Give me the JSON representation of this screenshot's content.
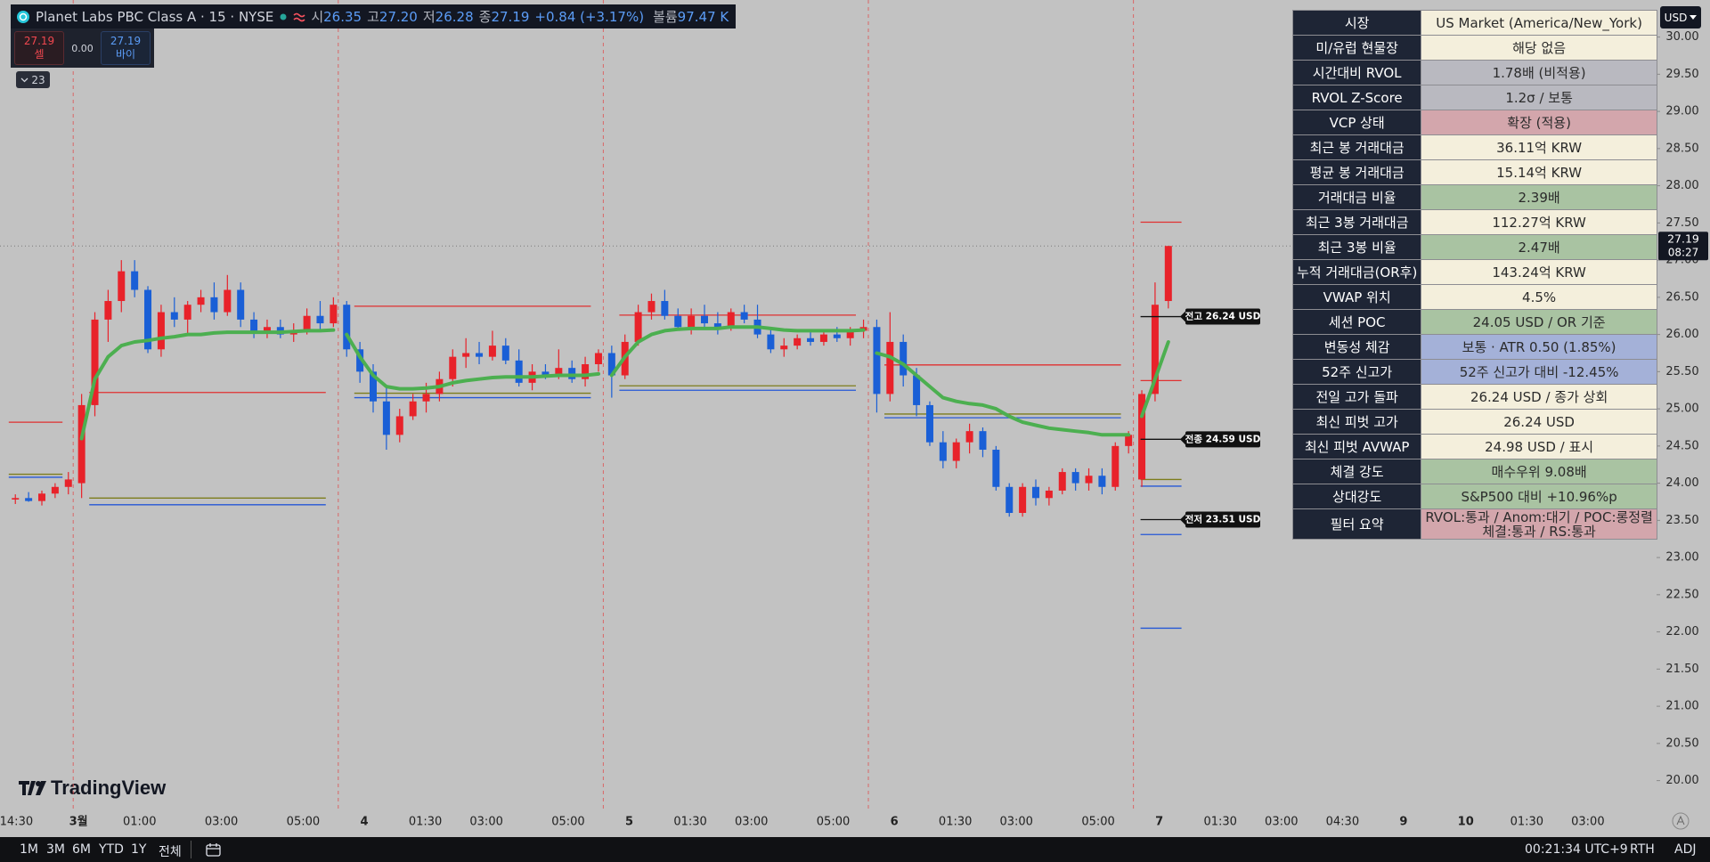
{
  "header": {
    "symbol": "Planet Labs PBC Class A · 15 · NYSE",
    "ohlc": [
      {
        "label": "시",
        "value": "26.35"
      },
      {
        "label": "고",
        "value": "27.20"
      },
      {
        "label": "저",
        "value": "26.28"
      },
      {
        "label": "종",
        "value": "27.19"
      }
    ],
    "change": "+0.84 (+3.17%)",
    "volume_label": "볼륨",
    "volume": "97.47 K"
  },
  "order": {
    "sell_price": "27.19",
    "sell_label": "셀",
    "spread": "0.00",
    "buy_price": "27.19",
    "buy_label": "바이"
  },
  "indicators_count": "23",
  "currency": "USD",
  "chart": {
    "type": "candlestick",
    "price": 27.19,
    "countdown": "08:27",
    "ylim": [
      20,
      30
    ],
    "yticks": [
      {
        "value": 30,
        "label": "30.00"
      },
      {
        "value": 29.5,
        "label": "29.50"
      },
      {
        "value": 29,
        "label": "29.00"
      },
      {
        "value": 28.5,
        "label": "28.50"
      },
      {
        "value": 28,
        "label": "28.00"
      },
      {
        "value": 27.5,
        "label": "27.50"
      },
      {
        "value": 27,
        "label": "27.00"
      },
      {
        "value": 26.5,
        "label": "26.50"
      },
      {
        "value": 26,
        "label": "26.00"
      },
      {
        "value": 25.5,
        "label": "25.50"
      },
      {
        "value": 25,
        "label": "25.00"
      },
      {
        "value": 24.5,
        "label": "24.50"
      },
      {
        "value": 24,
        "label": "24.00"
      },
      {
        "value": 23.5,
        "label": "23.50"
      },
      {
        "value": 23,
        "label": "23.00"
      },
      {
        "value": 22.5,
        "label": "22.50"
      },
      {
        "value": 22,
        "label": "22.00"
      },
      {
        "value": 21.5,
        "label": "21.50"
      },
      {
        "value": 21,
        "label": "21.00"
      },
      {
        "value": 20.5,
        "label": "20.50"
      },
      {
        "value": 20,
        "label": "20.00"
      }
    ],
    "x_labels": [
      "14:30",
      "3월",
      "01:00",
      "03:00",
      "05:00",
      "4",
      "01:30",
      "03:00",
      "05:00",
      "5",
      "01:30",
      "03:00",
      "05:00",
      "6",
      "01:30",
      "03:00",
      "05:00",
      "7",
      "01:30",
      "03:00",
      "04:30",
      "9",
      "10",
      "01:30",
      "03:00"
    ],
    "up_color": "#e8222a",
    "down_color": "#1a5fd6",
    "vwap_color": "#4caf50",
    "sessions": [
      {
        "candles": [
          {
            "o": 23.78,
            "h": 23.85,
            "l": 23.72,
            "c": 23.8
          },
          {
            "o": 23.8,
            "h": 23.88,
            "l": 23.75,
            "c": 23.76
          },
          {
            "o": 23.76,
            "h": 23.9,
            "l": 23.7,
            "c": 23.86
          },
          {
            "o": 23.86,
            "h": 24.0,
            "l": 23.8,
            "c": 23.95
          },
          {
            "o": 23.95,
            "h": 24.15,
            "l": 23.85,
            "c": 24.05
          }
        ],
        "vwap": [
          null,
          null,
          null,
          null,
          null
        ],
        "levels": [
          {
            "price": 24.82,
            "color": "#e03030"
          },
          {
            "price": 24.12,
            "color": "#7d7d1c"
          },
          {
            "price": 24.08,
            "color": "#2457d6"
          }
        ]
      },
      {
        "candles": [
          {
            "o": 24.0,
            "h": 25.2,
            "l": 23.8,
            "c": 25.05
          },
          {
            "o": 25.05,
            "h": 26.3,
            "l": 24.9,
            "c": 26.2
          },
          {
            "o": 26.2,
            "h": 26.6,
            "l": 25.9,
            "c": 26.45
          },
          {
            "o": 26.45,
            "h": 27.0,
            "l": 26.3,
            "c": 26.85
          },
          {
            "o": 26.85,
            "h": 27.0,
            "l": 26.5,
            "c": 26.6
          },
          {
            "o": 26.6,
            "h": 26.65,
            "l": 25.75,
            "c": 25.8
          },
          {
            "o": 25.8,
            "h": 26.4,
            "l": 25.7,
            "c": 26.3
          },
          {
            "o": 26.3,
            "h": 26.5,
            "l": 26.1,
            "c": 26.2
          },
          {
            "o": 26.2,
            "h": 26.45,
            "l": 26.0,
            "c": 26.4
          },
          {
            "o": 26.4,
            "h": 26.6,
            "l": 26.3,
            "c": 26.5
          },
          {
            "o": 26.5,
            "h": 26.7,
            "l": 26.2,
            "c": 26.3
          },
          {
            "o": 26.3,
            "h": 26.8,
            "l": 26.25,
            "c": 26.6
          },
          {
            "o": 26.6,
            "h": 26.7,
            "l": 26.1,
            "c": 26.2
          },
          {
            "o": 26.2,
            "h": 26.3,
            "l": 25.95,
            "c": 26.05
          },
          {
            "o": 26.05,
            "h": 26.2,
            "l": 25.95,
            "c": 26.1
          },
          {
            "o": 26.1,
            "h": 26.2,
            "l": 25.95,
            "c": 26.0
          },
          {
            "o": 26.0,
            "h": 26.15,
            "l": 25.9,
            "c": 26.05
          },
          {
            "o": 26.05,
            "h": 26.35,
            "l": 26.0,
            "c": 26.25
          },
          {
            "o": 26.25,
            "h": 26.45,
            "l": 26.05,
            "c": 26.15
          },
          {
            "o": 26.15,
            "h": 26.5,
            "l": 26.1,
            "c": 26.4
          }
        ],
        "vwap": [
          24.6,
          25.4,
          25.7,
          25.85,
          25.9,
          25.92,
          25.95,
          25.97,
          26.0,
          26.0,
          26.02,
          26.03,
          26.03,
          26.03,
          26.03,
          26.03,
          26.04,
          26.05,
          26.05,
          26.06
        ],
        "levels": [
          {
            "price": 25.22,
            "color": "#e03030"
          },
          {
            "price": 23.8,
            "color": "#7d7d1c"
          },
          {
            "price": 23.71,
            "color": "#2457d6"
          }
        ]
      },
      {
        "candles": [
          {
            "o": 26.4,
            "h": 26.45,
            "l": 25.7,
            "c": 25.8
          },
          {
            "o": 25.8,
            "h": 25.9,
            "l": 25.35,
            "c": 25.5
          },
          {
            "o": 25.5,
            "h": 25.6,
            "l": 24.95,
            "c": 25.1
          },
          {
            "o": 25.1,
            "h": 25.3,
            "l": 24.45,
            "c": 24.65
          },
          {
            "o": 24.65,
            "h": 25.0,
            "l": 24.55,
            "c": 24.9
          },
          {
            "o": 24.9,
            "h": 25.2,
            "l": 24.85,
            "c": 25.1
          },
          {
            "o": 25.1,
            "h": 25.35,
            "l": 24.95,
            "c": 25.2
          },
          {
            "o": 25.2,
            "h": 25.5,
            "l": 25.1,
            "c": 25.4
          },
          {
            "o": 25.4,
            "h": 25.8,
            "l": 25.3,
            "c": 25.7
          },
          {
            "o": 25.7,
            "h": 25.95,
            "l": 25.55,
            "c": 25.75
          },
          {
            "o": 25.75,
            "h": 25.9,
            "l": 25.6,
            "c": 25.7
          },
          {
            "o": 25.7,
            "h": 26.05,
            "l": 25.65,
            "c": 25.85
          },
          {
            "o": 25.85,
            "h": 25.95,
            "l": 25.6,
            "c": 25.65
          },
          {
            "o": 25.65,
            "h": 25.8,
            "l": 25.3,
            "c": 25.35
          },
          {
            "o": 25.35,
            "h": 25.6,
            "l": 25.25,
            "c": 25.5
          },
          {
            "o": 25.5,
            "h": 25.6,
            "l": 25.4,
            "c": 25.45
          },
          {
            "o": 25.45,
            "h": 25.8,
            "l": 25.4,
            "c": 25.55
          },
          {
            "o": 25.55,
            "h": 25.65,
            "l": 25.35,
            "c": 25.4
          },
          {
            "o": 25.4,
            "h": 25.7,
            "l": 25.3,
            "c": 25.6
          },
          {
            "o": 25.6,
            "h": 25.8,
            "l": 25.5,
            "c": 25.75
          }
        ],
        "vwap": [
          26.0,
          25.7,
          25.45,
          25.3,
          25.27,
          25.27,
          25.28,
          25.3,
          25.35,
          25.38,
          25.4,
          25.42,
          25.43,
          25.43,
          25.43,
          25.44,
          25.45,
          25.45,
          25.45,
          25.47
        ],
        "levels": [
          {
            "price": 26.38,
            "color": "#e03030"
          },
          {
            "price": 25.21,
            "color": "#7d7d1c"
          },
          {
            "price": 25.15,
            "color": "#2457d6"
          }
        ]
      },
      {
        "candles": [
          {
            "o": 25.75,
            "h": 25.85,
            "l": 25.15,
            "c": 25.45
          },
          {
            "o": 25.45,
            "h": 26.0,
            "l": 25.4,
            "c": 25.9
          },
          {
            "o": 25.9,
            "h": 26.4,
            "l": 25.85,
            "c": 26.3
          },
          {
            "o": 26.3,
            "h": 26.55,
            "l": 26.2,
            "c": 26.45
          },
          {
            "o": 26.45,
            "h": 26.6,
            "l": 26.2,
            "c": 26.25
          },
          {
            "o": 26.25,
            "h": 26.35,
            "l": 26.05,
            "c": 26.1
          },
          {
            "o": 26.1,
            "h": 26.35,
            "l": 26.0,
            "c": 26.25
          },
          {
            "o": 26.25,
            "h": 26.4,
            "l": 26.1,
            "c": 26.15
          },
          {
            "o": 26.15,
            "h": 26.3,
            "l": 26.0,
            "c": 26.1
          },
          {
            "o": 26.1,
            "h": 26.35,
            "l": 26.05,
            "c": 26.3
          },
          {
            "o": 26.3,
            "h": 26.4,
            "l": 26.15,
            "c": 26.2
          },
          {
            "o": 26.2,
            "h": 26.4,
            "l": 25.95,
            "c": 26.0
          },
          {
            "o": 26.0,
            "h": 26.1,
            "l": 25.75,
            "c": 25.8
          },
          {
            "o": 25.8,
            "h": 25.95,
            "l": 25.7,
            "c": 25.85
          },
          {
            "o": 25.85,
            "h": 26.0,
            "l": 25.8,
            "c": 25.95
          },
          {
            "o": 25.95,
            "h": 26.05,
            "l": 25.85,
            "c": 25.9
          },
          {
            "o": 25.9,
            "h": 26.05,
            "l": 25.85,
            "c": 26.0
          },
          {
            "o": 26.0,
            "h": 26.1,
            "l": 25.9,
            "c": 25.95
          },
          {
            "o": 25.95,
            "h": 26.1,
            "l": 25.85,
            "c": 26.05
          },
          {
            "o": 26.05,
            "h": 26.2,
            "l": 25.95,
            "c": 26.1
          }
        ],
        "vwap": [
          25.45,
          25.7,
          25.9,
          26.0,
          26.05,
          26.07,
          26.08,
          26.08,
          26.08,
          26.1,
          26.1,
          26.1,
          26.08,
          26.06,
          26.05,
          26.05,
          26.05,
          26.05,
          26.05,
          26.06
        ],
        "levels": [
          {
            "price": 26.26,
            "color": "#e03030"
          },
          {
            "price": 25.31,
            "color": "#7d7d1c"
          },
          {
            "price": 25.25,
            "color": "#2457d6"
          }
        ]
      },
      {
        "candles": [
          {
            "o": 26.1,
            "h": 26.2,
            "l": 24.95,
            "c": 25.2
          },
          {
            "o": 25.2,
            "h": 26.3,
            "l": 25.1,
            "c": 25.9
          },
          {
            "o": 25.9,
            "h": 26.0,
            "l": 25.3,
            "c": 25.45
          },
          {
            "o": 25.45,
            "h": 25.55,
            "l": 24.9,
            "c": 25.05
          },
          {
            "o": 25.05,
            "h": 25.1,
            "l": 24.5,
            "c": 24.55
          },
          {
            "o": 24.55,
            "h": 24.7,
            "l": 24.2,
            "c": 24.3
          },
          {
            "o": 24.3,
            "h": 24.6,
            "l": 24.2,
            "c": 24.55
          },
          {
            "o": 24.55,
            "h": 24.8,
            "l": 24.4,
            "c": 24.7
          },
          {
            "o": 24.7,
            "h": 24.75,
            "l": 24.35,
            "c": 24.45
          },
          {
            "o": 24.45,
            "h": 24.5,
            "l": 23.9,
            "c": 23.95
          },
          {
            "o": 23.95,
            "h": 24.0,
            "l": 23.55,
            "c": 23.6
          },
          {
            "o": 23.6,
            "h": 24.0,
            "l": 23.55,
            "c": 23.95
          },
          {
            "o": 23.95,
            "h": 24.05,
            "l": 23.7,
            "c": 23.8
          },
          {
            "o": 23.8,
            "h": 23.95,
            "l": 23.7,
            "c": 23.9
          },
          {
            "o": 23.9,
            "h": 24.2,
            "l": 23.85,
            "c": 24.15
          },
          {
            "o": 24.15,
            "h": 24.2,
            "l": 23.9,
            "c": 24.0
          },
          {
            "o": 24.0,
            "h": 24.2,
            "l": 23.9,
            "c": 24.1
          },
          {
            "o": 24.1,
            "h": 24.2,
            "l": 23.85,
            "c": 23.95
          },
          {
            "o": 23.95,
            "h": 24.55,
            "l": 23.9,
            "c": 24.5
          },
          {
            "o": 24.5,
            "h": 24.7,
            "l": 24.4,
            "c": 24.65
          }
        ],
        "vwap": [
          25.75,
          25.7,
          25.6,
          25.45,
          25.3,
          25.15,
          25.1,
          25.07,
          25.05,
          25.0,
          24.9,
          24.82,
          24.78,
          24.74,
          24.72,
          24.7,
          24.68,
          24.65,
          24.65,
          24.65
        ],
        "levels": [
          {
            "price": 25.59,
            "color": "#e03030"
          },
          {
            "price": 24.93,
            "color": "#7d7d1c"
          },
          {
            "price": 24.88,
            "color": "#2457d6"
          }
        ]
      },
      {
        "candles": [
          {
            "o": 24.05,
            "h": 25.25,
            "l": 23.95,
            "c": 25.2
          },
          {
            "o": 25.2,
            "h": 26.7,
            "l": 25.1,
            "c": 26.4
          },
          {
            "o": 26.45,
            "h": 27.19,
            "l": 26.35,
            "c": 27.19
          }
        ],
        "vwap": [
          24.9,
          25.4,
          25.9
        ],
        "levels": [
          {
            "price": 27.51,
            "color": "#e03030"
          },
          {
            "price": 25.38,
            "color": "#e03030"
          },
          {
            "price": 24.05,
            "color": "#7d7d1c"
          },
          {
            "price": 23.96,
            "color": "#2457d6"
          },
          {
            "price": 23.31,
            "color": "#2457d6"
          },
          {
            "price": 22.05,
            "color": "#2457d6"
          }
        ]
      }
    ],
    "marked_levels": [
      {
        "label": "전고 26.24 USD",
        "value": 26.24
      },
      {
        "label": "전종 24.59 USD",
        "value": 24.59
      },
      {
        "label": "전저 23.51 USD",
        "value": 23.51
      }
    ]
  },
  "table": {
    "rows": [
      {
        "label": "시장",
        "value": "US Market (America/New_York)",
        "color": "#f4efdc"
      },
      {
        "label": "미/유럽 현물장",
        "value": "해당 없음",
        "color": "#f4efdc"
      },
      {
        "label": "시간대비 RVOL",
        "value": "1.78배 (비적용)",
        "color": "#b9b9c0"
      },
      {
        "label": "RVOL Z-Score",
        "value": "1.2σ / 보통",
        "color": "#b9b9c0"
      },
      {
        "label": "VCP 상태",
        "value": "확장 (적용)",
        "color": "#d3a6ac"
      },
      {
        "label": "최근 봉 거래대금",
        "value": "36.11억 KRW",
        "color": "#f4efdc"
      },
      {
        "label": "평균 봉 거래대금",
        "value": "15.14억 KRW",
        "color": "#f4efdc"
      },
      {
        "label": "거래대금 비율",
        "value": "2.39배",
        "color": "#a9c3a2"
      },
      {
        "label": "최근 3봉 거래대금",
        "value": "112.27억 KRW",
        "color": "#f4efdc"
      },
      {
        "label": "최근 3봉 비율",
        "value": "2.47배",
        "color": "#a9c3a2"
      },
      {
        "label": "누적 거래대금(OR후)",
        "value": "143.24억 KRW",
        "color": "#f4efdc"
      },
      {
        "label": "VWAP 위치",
        "value": "4.5%",
        "color": "#f4efdc"
      },
      {
        "label": "세션 POC",
        "value": "24.05 USD / OR 기준",
        "color": "#a9c3a2"
      },
      {
        "label": "변동성 체감",
        "value": "보통 · ATR 0.50 (1.85%)",
        "color": "#a4b1d8"
      },
      {
        "label": "52주 신고가",
        "value": "52주 신고가 대비 -12.45%",
        "color": "#a4b1d8"
      },
      {
        "label": "전일 고가 돌파",
        "value": "26.24 USD / 종가 상회",
        "color": "#f4efdc"
      },
      {
        "label": "최신 피벗 고가",
        "value": "26.24 USD",
        "color": "#f4efdc"
      },
      {
        "label": "최신 피벗 AVWAP",
        "value": "24.98 USD / 표시",
        "color": "#f4efdc"
      },
      {
        "label": "체결 강도",
        "value": "매수우위 9.08배",
        "color": "#a9c3a2"
      },
      {
        "label": "상대강도",
        "value": "S&P500 대비 +10.96%p",
        "color": "#a9c3a2"
      },
      {
        "label": "필터 요약",
        "value": [
          "RVOL:통과 / Anom:대기 / POC:롱정렬",
          "체결:통과 / RS:통과"
        ],
        "color": "#d3a6ac"
      }
    ]
  },
  "watermark": "TradingView",
  "toolbar": {
    "ranges": [
      "1M",
      "3M",
      "6M",
      "YTD",
      "1Y",
      "전체"
    ],
    "clock": "00:21:34 UTC+9",
    "session": "RTH",
    "adj": "ADJ"
  }
}
